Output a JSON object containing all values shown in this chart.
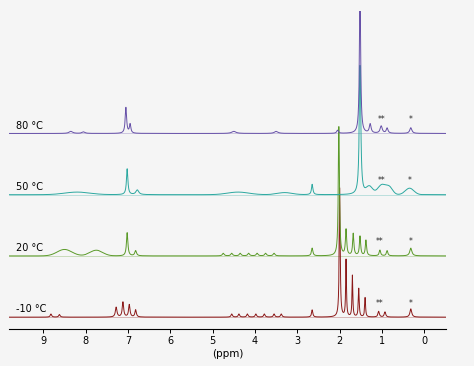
{
  "temperatures": [
    "80 °C",
    "50 °C",
    "20 °C",
    "-10 °C"
  ],
  "colors": [
    "#6650a8",
    "#2ba8a0",
    "#5a9a28",
    "#8b1818"
  ],
  "xlabel": "(ppm)",
  "offsets": [
    2.7,
    1.8,
    0.9,
    0.0
  ],
  "scale": 0.38,
  "background": "#f5f5f5",
  "ann_color": "#222222"
}
